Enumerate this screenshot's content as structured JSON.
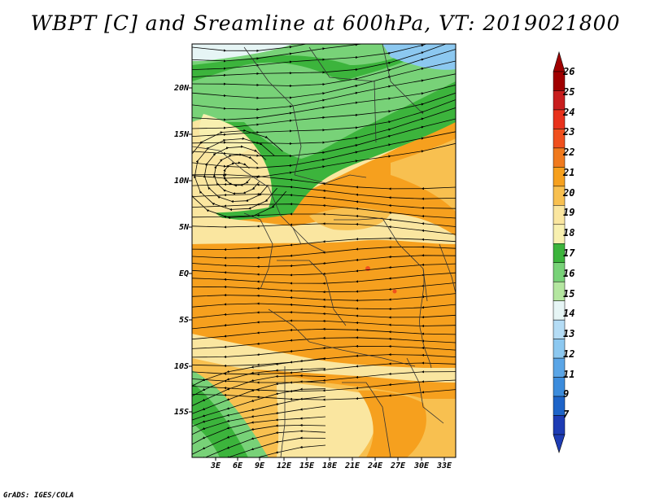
{
  "title": "WBPT [C] and Sreamline at 600hPa, VT: 2019021800",
  "footer": "GrADS: IGES/COLA",
  "lat_labels": [
    "20N",
    "15N",
    "10N",
    "5N",
    "EQ",
    "5S",
    "10S",
    "15S"
  ],
  "lon_labels": [
    "3E",
    "6E",
    "9E",
    "12E",
    "15E",
    "18E",
    "21E",
    "24E",
    "27E",
    "30E",
    "33E"
  ],
  "colorbar": {
    "labels": [
      "26",
      "25",
      "24",
      "23",
      "22",
      "21",
      "20",
      "19",
      "18",
      "17",
      "16",
      "15",
      "14",
      "13",
      "12",
      "11",
      "9",
      "7"
    ],
    "colors": [
      "#a00000",
      "#c81e1e",
      "#e8321c",
      "#f0501e",
      "#f07a1e",
      "#f6a01e",
      "#f8c050",
      "#fae6a0",
      "#f8f0b0",
      "#3cb43c",
      "#78d278",
      "#b4e6a0",
      "#e6f5f5",
      "#b4dcf5",
      "#8cc8f0",
      "#5aa5e6",
      "#3c8cdc",
      "#1e64c8",
      "#1e3cb4"
    ]
  }
}
